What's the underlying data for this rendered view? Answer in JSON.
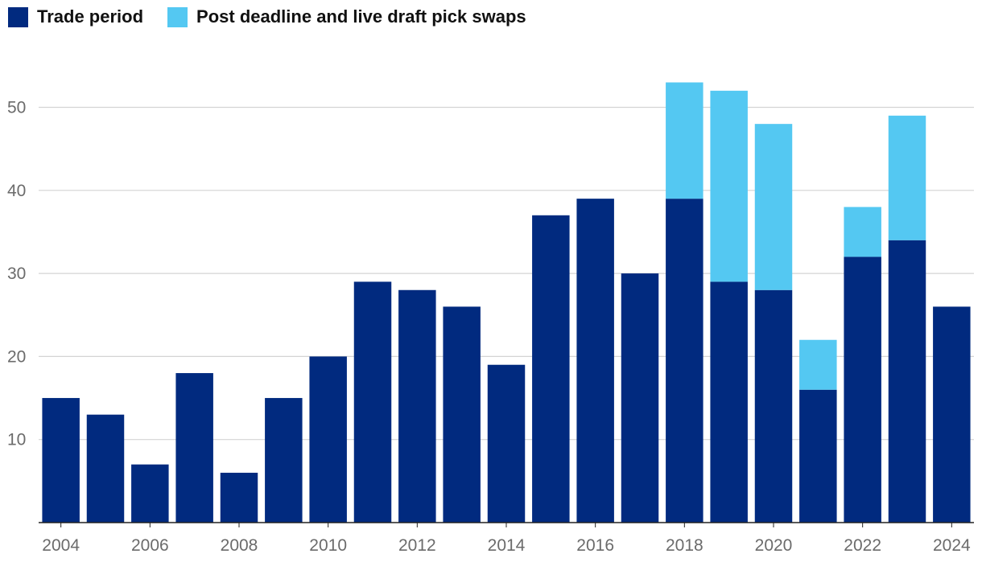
{
  "legend": [
    {
      "label": "Trade period",
      "color": "#012A7F"
    },
    {
      "label": "Post deadline and live draft pick swaps",
      "color": "#54C8F2"
    }
  ],
  "chart_data": {
    "type": "bar",
    "stacked": true,
    "categories": [
      "2004",
      "2005",
      "2006",
      "2007",
      "2008",
      "2009",
      "2010",
      "2011",
      "2012",
      "2013",
      "2014",
      "2015",
      "2016",
      "2017",
      "2018",
      "2019",
      "2020",
      "2021",
      "2022",
      "2023",
      "2024"
    ],
    "x_tick_labels": [
      "2004",
      "2006",
      "2008",
      "2010",
      "2012",
      "2014",
      "2016",
      "2018",
      "2020",
      "2022",
      "2024"
    ],
    "series": [
      {
        "name": "Trade period",
        "color": "#012A7F",
        "values": [
          15,
          13,
          7,
          18,
          6,
          15,
          20,
          29,
          28,
          26,
          19,
          37,
          39,
          30,
          39,
          29,
          28,
          16,
          32,
          34,
          26
        ]
      },
      {
        "name": "Post deadline and live draft pick swaps",
        "color": "#54C8F2",
        "values": [
          0,
          0,
          0,
          0,
          0,
          0,
          0,
          0,
          0,
          0,
          0,
          0,
          0,
          0,
          14,
          23,
          20,
          6,
          6,
          15,
          0
        ]
      }
    ],
    "ylim": [
      0,
      55
    ],
    "y_ticks": [
      10,
      20,
      30,
      40,
      50
    ],
    "grid": true,
    "legend_position": "top-left",
    "title": "",
    "xlabel": "",
    "ylabel": ""
  }
}
